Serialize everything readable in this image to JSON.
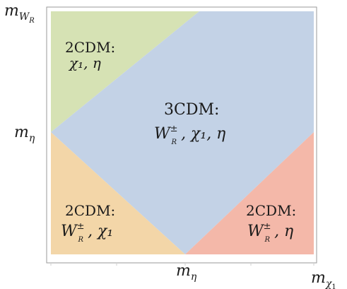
{
  "colors": {
    "green_region": "#d6e2b4",
    "blue_region": "#c3d2e6",
    "orange_region": "#f3d6a8",
    "red_region": "#f4b8a9",
    "frame": "#9a9a9a"
  },
  "axes": {
    "y_top_label": {
      "base": "m",
      "sub": "W",
      "subsub": "R"
    },
    "y_mid_label": {
      "base": "m",
      "sub": "η"
    },
    "x_mid_label": {
      "base": "m",
      "sub": "η"
    },
    "x_right_label": {
      "base": "m",
      "sub": "χ",
      "subsub": "1"
    }
  },
  "regions": {
    "top_left": {
      "title": "2CDM:",
      "fields": "χ₁, η"
    },
    "center": {
      "title": "3CDM:",
      "fields_prefix": "W",
      "fields_suffix": ", χ₁, η"
    },
    "bottom_left": {
      "title": "2CDM:",
      "fields_prefix": "W",
      "fields_suffix": ", χ₁"
    },
    "bottom_right": {
      "title": "2CDM:",
      "fields_prefix": "W",
      "fields_suffix": ", η"
    }
  },
  "field_marks": {
    "pm": "±",
    "sub_r": "R"
  }
}
